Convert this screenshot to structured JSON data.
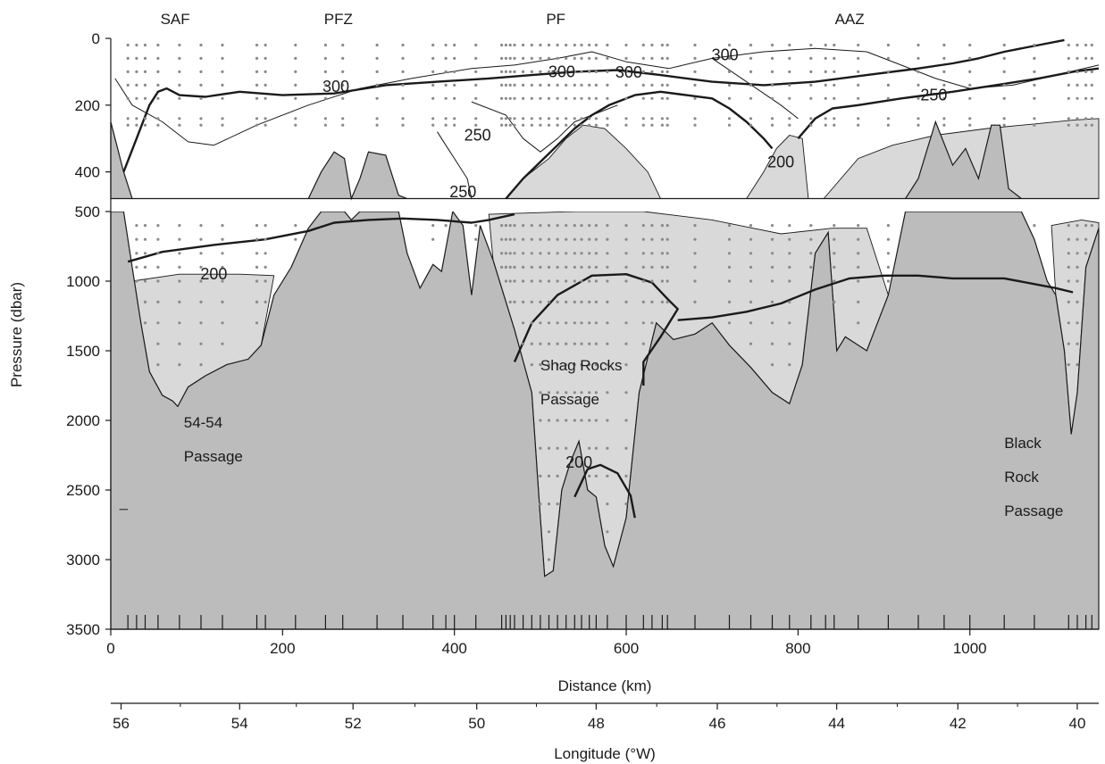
{
  "chart_data": {
    "type": "contour-section",
    "title": "",
    "xlabel": "Distance (km)",
    "ylabel": "Pressure (dbar)",
    "x2label": "Longitude (°W)",
    "xlim": [
      0,
      1150
    ],
    "ylim_top": [
      0,
      500
    ],
    "ylim_bottom": [
      500,
      3500
    ],
    "x_ticks": [
      0,
      200,
      400,
      600,
      800,
      1000
    ],
    "x_tick_labels": [
      "0",
      "200",
      "400",
      "600",
      "800",
      "1000"
    ],
    "y_ticks_top": [
      0,
      200,
      400
    ],
    "y_ticks_top_labels": [
      "0",
      "200",
      "400"
    ],
    "y_ticks_bottom": [
      500,
      1000,
      1500,
      2000,
      2500,
      3000,
      3500
    ],
    "y_ticks_bottom_labels": [
      "500",
      "1000",
      "1500",
      "2000",
      "2500",
      "3000",
      "3500"
    ],
    "lon_ticks": [
      56,
      54,
      52,
      50,
      48,
      46,
      44,
      42,
      40
    ],
    "lon_tick_labels": [
      "56",
      "54",
      "52",
      "50",
      "48",
      "46",
      "44",
      "42",
      "40"
    ],
    "lon_tick_positions_km": [
      12,
      150,
      282,
      426,
      565,
      706,
      845,
      986,
      1125
    ],
    "fronts": [
      {
        "label": "SAF",
        "x": 75
      },
      {
        "label": "PFZ",
        "x": 265
      },
      {
        "label": "PF",
        "x": 518
      },
      {
        "label": "AAZ",
        "x": 860
      }
    ],
    "contour_labels": [
      {
        "text": "300",
        "x": 262,
        "y": 145
      },
      {
        "text": "300",
        "x": 525,
        "y": 100
      },
      {
        "text": "300",
        "x": 603,
        "y": 102
      },
      {
        "text": "300",
        "x": 715,
        "y": 50
      },
      {
        "text": "250",
        "x": 427,
        "y": 290
      },
      {
        "text": "250",
        "x": 410,
        "y": 460
      },
      {
        "text": "250",
        "x": 958,
        "y": 170
      },
      {
        "text": "200",
        "x": 780,
        "y": 370
      },
      {
        "text": "200",
        "x": 120,
        "y": 950
      },
      {
        "text": "200",
        "x": 545,
        "y": 2300
      }
    ],
    "passages": [
      {
        "lines": [
          "54-54",
          "Passage"
        ],
        "x": 85,
        "y": 2050
      },
      {
        "lines": [
          "Shag Rocks",
          "Passage"
        ],
        "x": 500,
        "y": 1640
      },
      {
        "lines": [
          "Black",
          "Rock",
          "Passage"
        ],
        "x": 1040,
        "y": 2200
      }
    ],
    "station_x": [
      20,
      30,
      40,
      55,
      80,
      105,
      130,
      170,
      180,
      215,
      250,
      270,
      310,
      340,
      375,
      390,
      400,
      425,
      455,
      460,
      465,
      470,
      480,
      490,
      500,
      510,
      520,
      530,
      540,
      548,
      557,
      565,
      578,
      600,
      620,
      630,
      642,
      648,
      680,
      720,
      745,
      770,
      790,
      815,
      832,
      842,
      870,
      905,
      940,
      970,
      1000,
      1040,
      1075,
      1115,
      1125,
      1135,
      1142
    ],
    "bathymetry": [
      [
        0,
        250
      ],
      [
        15,
        400
      ],
      [
        25,
        900
      ],
      [
        35,
        1300
      ],
      [
        45,
        1650
      ],
      [
        60,
        1820
      ],
      [
        72,
        1860
      ],
      [
        78,
        1900
      ],
      [
        90,
        1760
      ],
      [
        110,
        1680
      ],
      [
        135,
        1600
      ],
      [
        160,
        1560
      ],
      [
        175,
        1460
      ],
      [
        190,
        1100
      ],
      [
        210,
        900
      ],
      [
        230,
        620
      ],
      [
        245,
        400
      ],
      [
        260,
        340
      ],
      [
        272,
        360
      ],
      [
        280,
        560
      ],
      [
        290,
        420
      ],
      [
        300,
        340
      ],
      [
        320,
        350
      ],
      [
        335,
        470
      ],
      [
        345,
        800
      ],
      [
        360,
        1050
      ],
      [
        375,
        880
      ],
      [
        385,
        930
      ],
      [
        398,
        480
      ],
      [
        410,
        600
      ],
      [
        420,
        1100
      ],
      [
        430,
        600
      ],
      [
        445,
        850
      ],
      [
        470,
        1350
      ],
      [
        490,
        1800
      ],
      [
        500,
        2700
      ],
      [
        505,
        3120
      ],
      [
        515,
        3080
      ],
      [
        525,
        2500
      ],
      [
        535,
        2300
      ],
      [
        545,
        2150
      ],
      [
        555,
        2500
      ],
      [
        565,
        2550
      ],
      [
        575,
        2900
      ],
      [
        585,
        3050
      ],
      [
        600,
        2700
      ],
      [
        615,
        1800
      ],
      [
        635,
        1300
      ],
      [
        655,
        1420
      ],
      [
        680,
        1380
      ],
      [
        700,
        1300
      ],
      [
        720,
        1460
      ],
      [
        745,
        1620
      ],
      [
        770,
        1800
      ],
      [
        790,
        1880
      ],
      [
        805,
        1600
      ],
      [
        820,
        800
      ],
      [
        835,
        650
      ],
      [
        845,
        1500
      ],
      [
        855,
        1400
      ],
      [
        880,
        1500
      ],
      [
        905,
        1100
      ],
      [
        925,
        480
      ],
      [
        940,
        420
      ],
      [
        960,
        250
      ],
      [
        980,
        380
      ],
      [
        995,
        330
      ],
      [
        1010,
        420
      ],
      [
        1025,
        260
      ],
      [
        1035,
        260
      ],
      [
        1045,
        450
      ],
      [
        1060,
        500
      ],
      [
        1075,
        700
      ],
      [
        1090,
        1000
      ],
      [
        1100,
        1100
      ],
      [
        1110,
        1500
      ],
      [
        1118,
        2100
      ],
      [
        1125,
        1800
      ],
      [
        1135,
        900
      ],
      [
        1150,
        620
      ]
    ],
    "intermediate_regions": [
      [
        [
          25,
          1000
        ],
        [
          80,
          950
        ],
        [
          150,
          950
        ],
        [
          190,
          960
        ],
        [
          175,
          1460
        ],
        [
          160,
          1560
        ],
        [
          135,
          1600
        ],
        [
          110,
          1680
        ],
        [
          90,
          1760
        ],
        [
          78,
          1900
        ],
        [
          72,
          1860
        ],
        [
          60,
          1820
        ],
        [
          45,
          1650
        ],
        [
          35,
          1300
        ]
      ],
      [
        [
          440,
          520
        ],
        [
          540,
          480
        ],
        [
          620,
          450
        ],
        [
          700,
          560
        ],
        [
          780,
          660
        ],
        [
          840,
          620
        ],
        [
          880,
          620
        ],
        [
          905,
          1100
        ],
        [
          880,
          1500
        ],
        [
          855,
          1400
        ],
        [
          845,
          1500
        ],
        [
          835,
          650
        ],
        [
          820,
          800
        ],
        [
          805,
          1600
        ],
        [
          790,
          1880
        ],
        [
          770,
          1800
        ],
        [
          745,
          1620
        ],
        [
          720,
          1460
        ],
        [
          700,
          1300
        ],
        [
          680,
          1380
        ],
        [
          655,
          1420
        ],
        [
          635,
          1300
        ],
        [
          615,
          1800
        ],
        [
          600,
          2700
        ],
        [
          585,
          3050
        ],
        [
          575,
          2900
        ],
        [
          565,
          2550
        ],
        [
          555,
          2500
        ],
        [
          545,
          2150
        ],
        [
          535,
          2300
        ],
        [
          525,
          2500
        ],
        [
          515,
          3080
        ],
        [
          505,
          3120
        ],
        [
          500,
          2700
        ],
        [
          490,
          1800
        ],
        [
          470,
          1350
        ],
        [
          445,
          850
        ]
      ],
      [
        [
          1095,
          600
        ],
        [
          1130,
          560
        ],
        [
          1150,
          580
        ],
        [
          1150,
          620
        ],
        [
          1135,
          900
        ],
        [
          1125,
          1800
        ],
        [
          1118,
          2100
        ],
        [
          1110,
          1500
        ],
        [
          1100,
          1100
        ]
      ]
    ],
    "upper_light_regions": [
      [
        [
          460,
          480
        ],
        [
          480,
          420
        ],
        [
          510,
          360
        ],
        [
          530,
          300
        ],
        [
          550,
          260
        ],
        [
          575,
          270
        ],
        [
          600,
          330
        ],
        [
          625,
          400
        ],
        [
          640,
          480
        ]
      ],
      [
        [
          740,
          480
        ],
        [
          760,
          400
        ],
        [
          775,
          330
        ],
        [
          790,
          290
        ],
        [
          805,
          300
        ],
        [
          812,
          480
        ]
      ],
      [
        [
          830,
          480
        ],
        [
          870,
          360
        ],
        [
          910,
          320
        ],
        [
          960,
          290
        ],
        [
          1020,
          270
        ],
        [
          1080,
          255
        ],
        [
          1120,
          245
        ],
        [
          1150,
          240
        ],
        [
          1150,
          480
        ]
      ]
    ],
    "thin_contours": [
      [
        [
          5,
          120
        ],
        [
          25,
          200
        ],
        [
          60,
          250
        ],
        [
          90,
          310
        ],
        [
          120,
          320
        ],
        [
          170,
          260
        ],
        [
          230,
          200
        ],
        [
          290,
          150
        ],
        [
          350,
          120
        ],
        [
          420,
          90
        ],
        [
          470,
          80
        ]
      ],
      [
        [
          420,
          190
        ],
        [
          460,
          230
        ],
        [
          480,
          300
        ],
        [
          500,
          340
        ],
        [
          520,
          300
        ],
        [
          540,
          250
        ],
        [
          560,
          230
        ],
        [
          590,
          200
        ]
      ],
      [
        [
          380,
          280
        ],
        [
          395,
          340
        ],
        [
          405,
          380
        ],
        [
          415,
          420
        ],
        [
          420,
          480
        ]
      ],
      [
        [
          470,
          80
        ],
        [
          520,
          60
        ],
        [
          560,
          40
        ],
        [
          600,
          70
        ],
        [
          650,
          90
        ],
        [
          700,
          60
        ],
        [
          760,
          40
        ],
        [
          820,
          30
        ],
        [
          880,
          40
        ]
      ],
      [
        [
          880,
          40
        ],
        [
          920,
          80
        ],
        [
          960,
          120
        ],
        [
          1000,
          150
        ],
        [
          1050,
          140
        ],
        [
          1100,
          110
        ],
        [
          1150,
          80
        ]
      ],
      [
        [
          700,
          60
        ],
        [
          740,
          130
        ],
        [
          780,
          200
        ],
        [
          800,
          240
        ]
      ],
      [
        [
          10,
          2640
        ],
        [
          20,
          2640
        ]
      ]
    ],
    "thick_contours": [
      [
        [
          15,
          400
        ],
        [
          30,
          300
        ],
        [
          45,
          200
        ],
        [
          55,
          160
        ],
        [
          65,
          150
        ],
        [
          80,
          170
        ],
        [
          110,
          175
        ],
        [
          150,
          160
        ],
        [
          200,
          170
        ],
        [
          260,
          165
        ],
        [
          320,
          140
        ],
        [
          380,
          130
        ],
        [
          440,
          120
        ],
        [
          490,
          110
        ],
        [
          540,
          100
        ],
        [
          590,
          95
        ],
        [
          640,
          110
        ],
        [
          700,
          130
        ],
        [
          760,
          140
        ],
        [
          820,
          130
        ],
        [
          880,
          110
        ],
        [
          940,
          90
        ],
        [
          980,
          75
        ],
        [
          1010,
          60
        ],
        [
          1040,
          40
        ],
        [
          1080,
          20
        ],
        [
          1110,
          5
        ]
      ],
      [
        [
          460,
          480
        ],
        [
          480,
          420
        ],
        [
          500,
          370
        ],
        [
          520,
          320
        ],
        [
          540,
          270
        ],
        [
          560,
          230
        ],
        [
          580,
          200
        ],
        [
          610,
          170
        ],
        [
          640,
          160
        ],
        [
          670,
          170
        ],
        [
          700,
          180
        ],
        [
          720,
          210
        ],
        [
          740,
          250
        ],
        [
          760,
          300
        ],
        [
          770,
          330
        ]
      ],
      [
        [
          800,
          300
        ],
        [
          820,
          240
        ],
        [
          840,
          210
        ],
        [
          870,
          200
        ],
        [
          920,
          180
        ],
        [
          980,
          160
        ],
        [
          1030,
          140
        ],
        [
          1080,
          120
        ],
        [
          1120,
          100
        ],
        [
          1150,
          90
        ]
      ],
      [
        [
          20,
          860
        ],
        [
          60,
          790
        ],
        [
          120,
          740
        ],
        [
          180,
          700
        ],
        [
          230,
          640
        ],
        [
          260,
          580
        ],
        [
          300,
          560
        ],
        [
          340,
          550
        ],
        [
          380,
          560
        ],
        [
          420,
          580
        ],
        [
          440,
          560
        ],
        [
          470,
          520
        ]
      ],
      [
        [
          470,
          1580
        ],
        [
          490,
          1300
        ],
        [
          520,
          1100
        ],
        [
          560,
          960
        ],
        [
          600,
          950
        ],
        [
          630,
          1010
        ],
        [
          650,
          1140
        ],
        [
          660,
          1200
        ],
        [
          640,
          1400
        ],
        [
          620,
          1580
        ],
        [
          620,
          1750
        ]
      ],
      [
        [
          660,
          1280
        ],
        [
          700,
          1260
        ],
        [
          740,
          1220
        ],
        [
          780,
          1160
        ],
        [
          820,
          1060
        ],
        [
          860,
          980
        ],
        [
          900,
          960
        ],
        [
          940,
          960
        ],
        [
          980,
          980
        ],
        [
          1040,
          980
        ],
        [
          1100,
          1050
        ],
        [
          1120,
          1080
        ]
      ],
      [
        [
          540,
          2550
        ],
        [
          555,
          2350
        ],
        [
          570,
          2320
        ],
        [
          590,
          2380
        ],
        [
          605,
          2540
        ],
        [
          610,
          2700
        ]
      ]
    ],
    "sample_dots": true
  }
}
